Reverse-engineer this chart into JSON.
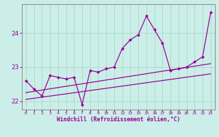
{
  "xlabel": "Windchill (Refroidissement éolien,°C)",
  "bg_color": "#cceee8",
  "grid_color": "#aaddcc",
  "line_color": "#990099",
  "xlim": [
    -0.5,
    23.5
  ],
  "ylim": [
    21.75,
    24.85
  ],
  "yticks": [
    22,
    23,
    24
  ],
  "hours": [
    0,
    1,
    2,
    3,
    4,
    5,
    6,
    7,
    8,
    9,
    10,
    11,
    12,
    13,
    14,
    15,
    16,
    17,
    18,
    19,
    20,
    21,
    22,
    23
  ],
  "values": [
    22.6,
    22.35,
    22.15,
    22.75,
    22.7,
    22.65,
    22.7,
    21.9,
    22.9,
    22.85,
    22.95,
    23.0,
    23.55,
    23.8,
    23.95,
    24.5,
    24.1,
    23.7,
    22.9,
    22.95,
    23.0,
    23.15,
    23.3,
    24.6
  ],
  "trend1_x": [
    0,
    23
  ],
  "trend1_y": [
    22.05,
    22.8
  ],
  "trend2_x": [
    0,
    23
  ],
  "trend2_y": [
    22.25,
    23.1
  ]
}
